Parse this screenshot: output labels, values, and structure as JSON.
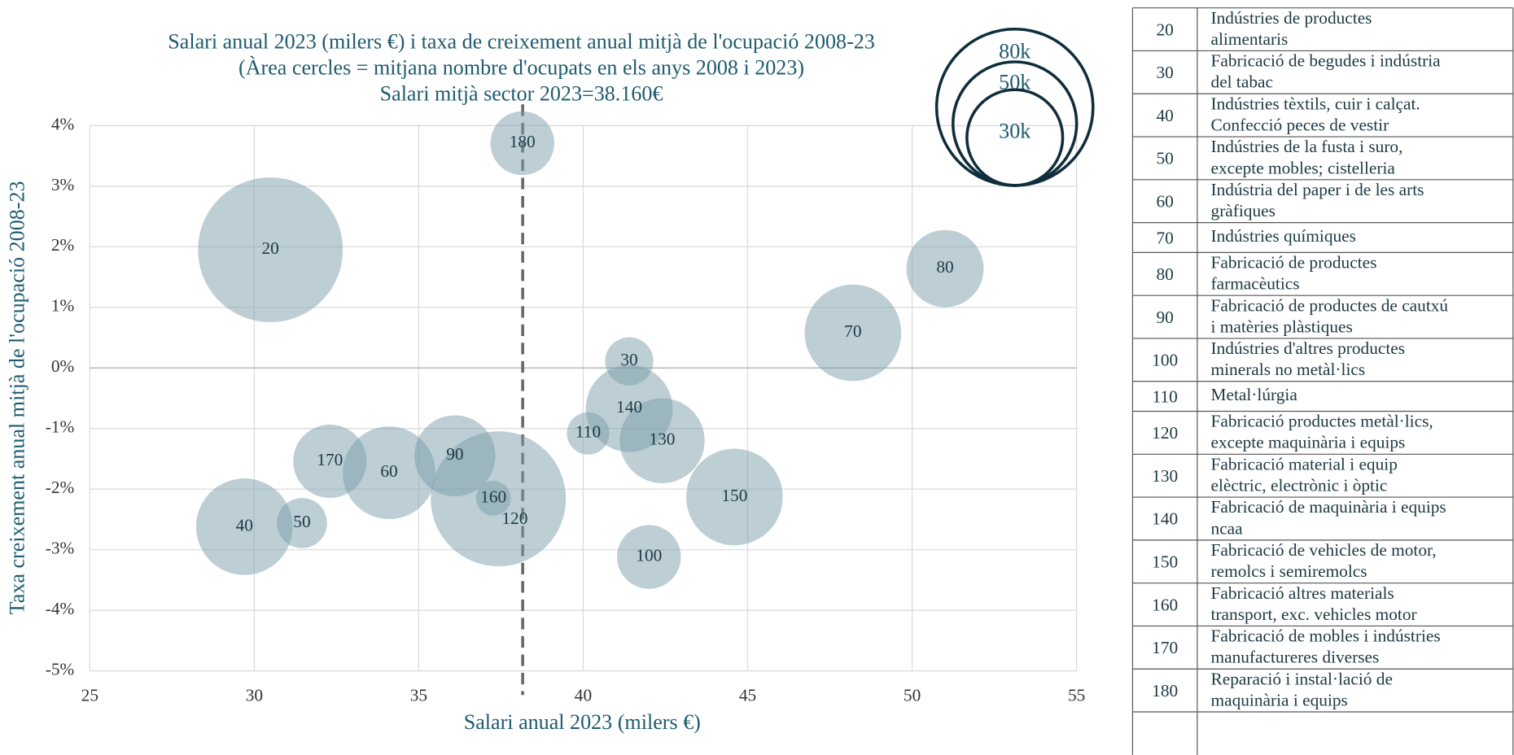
{
  "chart_data": {
    "type": "bubble",
    "title": [
      "Salari anual 2023 (milers €) i taxa de creixement anual mitjà de l'ocupació 2008-23",
      "(Àrea cercles = mitjana nombre d'ocupats en els anys 2008 i 2023)",
      "Salari mitjà sector 2023=38.160€"
    ],
    "x_label": "Salari anual 2023 (milers €)",
    "y_label": "Taxa creixement anual mitjà de l'ocupació 2008-23",
    "labels": [
      "20",
      "30",
      "40",
      "50",
      "60",
      "70",
      "80",
      "90",
      "100",
      "110",
      "120",
      "130",
      "140",
      "150",
      "160",
      "170",
      "180"
    ],
    "x": [
      30.49,
      41.4,
      29.7,
      31.45,
      34.1,
      48.2,
      51.0,
      36.1,
      42.0,
      40.15,
      37.42,
      42.4,
      41.4,
      44.6,
      37.27,
      32.3,
      38.15
    ],
    "y": [
      1.95,
      0.11,
      -2.62,
      -2.56,
      -1.73,
      0.58,
      1.64,
      -1.45,
      -3.12,
      -1.08,
      -2.16,
      -1.2,
      -0.67,
      -2.13,
      -2.15,
      -1.54,
      3.71
    ],
    "size": [
      68600,
      7600,
      30500,
      8240,
      28100,
      30500,
      19500,
      21500,
      13300,
      5900,
      59700,
      23600,
      24700,
      30500,
      3950,
      17600,
      13300
    ],
    "color": "#7b9dab",
    "reference_x": 38.16,
    "xlim": [
      25,
      55
    ],
    "xticks": [
      25,
      30,
      35,
      40,
      45,
      50,
      55
    ],
    "ylim": [
      -5,
      4
    ],
    "yticks": [
      {
        "value": -5,
        "label": "-5%"
      },
      {
        "value": -4,
        "label": "-4%"
      },
      {
        "value": -3,
        "label": "-3%"
      },
      {
        "value": -2,
        "label": "-2%"
      },
      {
        "value": -1,
        "label": "-1%"
      },
      {
        "value": 0,
        "label": "0%"
      },
      {
        "value": 1,
        "label": "1%"
      },
      {
        "value": 2,
        "label": "2%"
      },
      {
        "value": 3,
        "label": "3%"
      },
      {
        "value": 4,
        "label": "4%"
      }
    ],
    "size_legend": [
      {
        "value": 80000,
        "label": "80k"
      },
      {
        "value": 50000,
        "label": "50k"
      },
      {
        "value": 30000,
        "label": "30k"
      }
    ],
    "grid": true
  },
  "table": {
    "rows": [
      {
        "code": "20",
        "lines": [
          "Indústries de productes",
          "alimentaris"
        ]
      },
      {
        "code": "30",
        "lines": [
          "Fabricació de begudes i indústria",
          "del tabac"
        ]
      },
      {
        "code": "40",
        "lines": [
          "Indústries tèxtils, cuir i calçat.",
          "Confecció peces de vestir"
        ]
      },
      {
        "code": "50",
        "lines": [
          "Indústries de la fusta i suro,",
          "excepte mobles; cistelleria"
        ]
      },
      {
        "code": "60",
        "lines": [
          "Indústria del paper i de les arts",
          "gràfiques"
        ]
      },
      {
        "code": "70",
        "lines": [
          "Indústries químiques"
        ]
      },
      {
        "code": "80",
        "lines": [
          "Fabricació de productes",
          "farmacèutics"
        ]
      },
      {
        "code": "90",
        "lines": [
          "Fabricació de productes de cautxú",
          "i matèries plàstiques"
        ]
      },
      {
        "code": "100",
        "lines": [
          "Indústries d'altres productes",
          "minerals no metàl·lics"
        ]
      },
      {
        "code": "110",
        "lines": [
          "Metal·lúrgia"
        ]
      },
      {
        "code": "120",
        "lines": [
          "Fabricació productes metàl·lics,",
          "excepte maquinària i equips"
        ]
      },
      {
        "code": "130",
        "lines": [
          "Fabricació material i equip",
          "elèctric, electrònic i òptic"
        ]
      },
      {
        "code": "140",
        "lines": [
          "Fabricació de maquinària i equips",
          "ncaa"
        ]
      },
      {
        "code": "150",
        "lines": [
          "Fabricació de vehicles de motor,",
          "remolcs i semiremolcs"
        ]
      },
      {
        "code": "160",
        "lines": [
          "Fabricació altres materials",
          "transport, exc. vehicles motor"
        ]
      },
      {
        "code": "170",
        "lines": [
          "Fabricació de mobles i indústries",
          "manufactureres diverses"
        ]
      },
      {
        "code": "180",
        "lines": [
          "Reparació i instal·lació de",
          "maquinària i equips"
        ]
      }
    ]
  }
}
